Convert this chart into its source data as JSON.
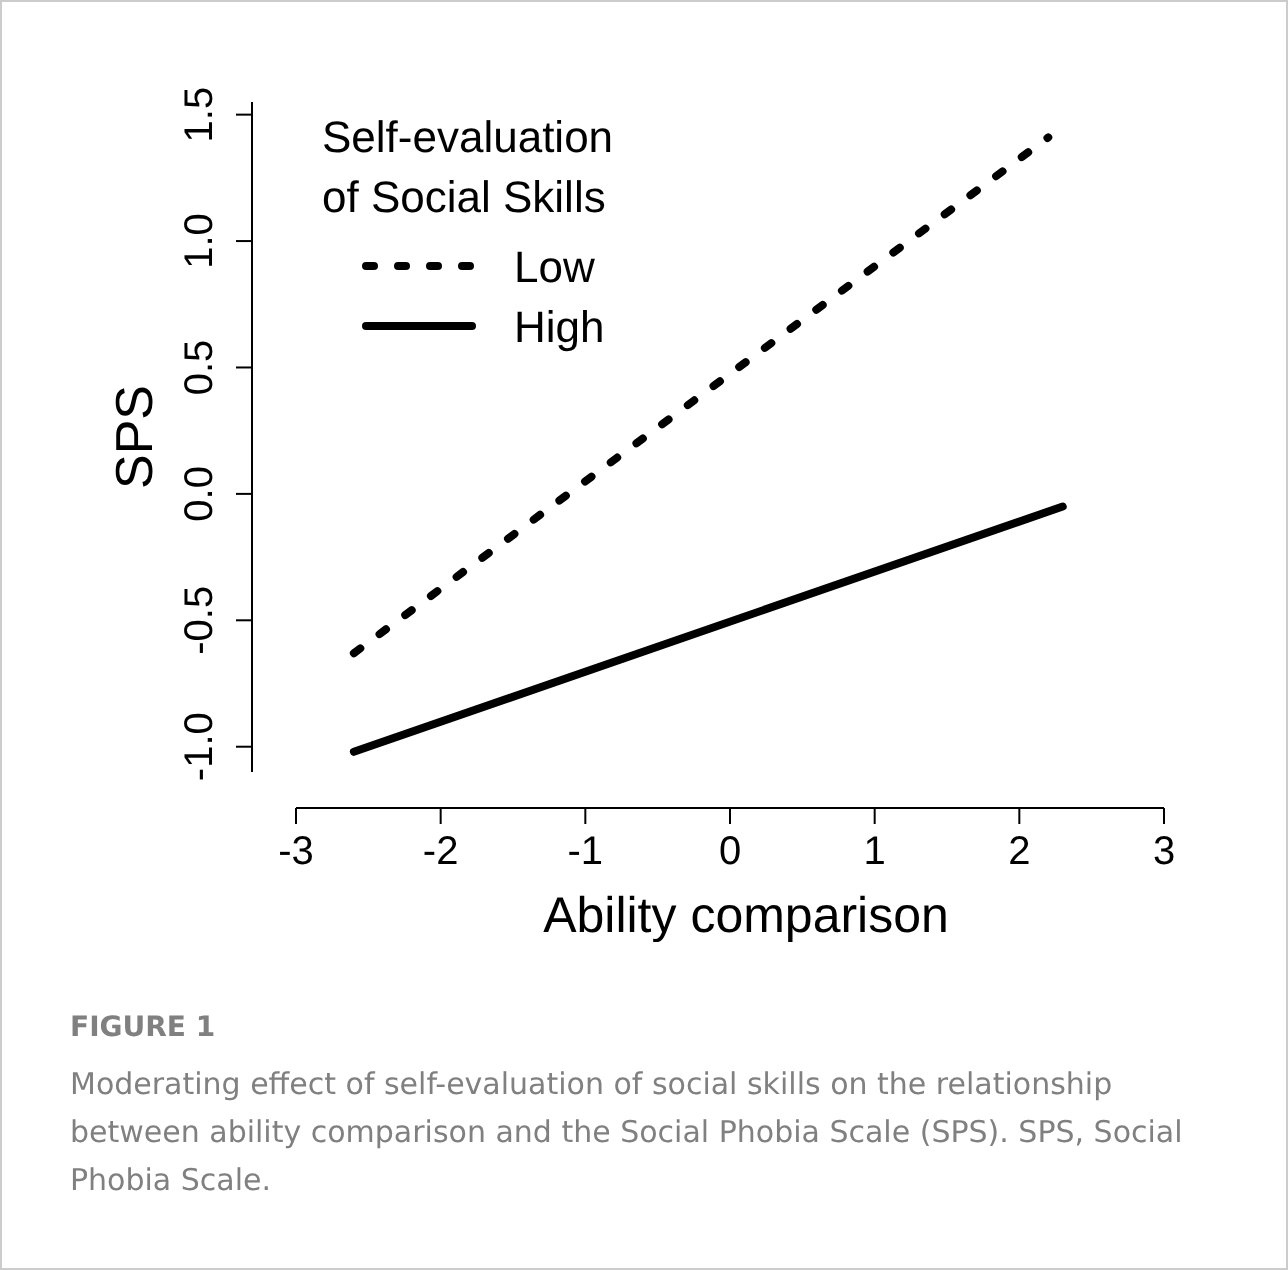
{
  "chart_data": {
    "type": "line",
    "xlabel": "Ability comparison",
    "ylabel": "SPS",
    "legend_title": "Self-evaluation\nof Social Skills",
    "legend": "top left",
    "grid": false,
    "xlim": [
      -3,
      3
    ],
    "xticks": [
      -3,
      -2,
      -1,
      0,
      1,
      2,
      3
    ],
    "ylim": [
      -1.1,
      1.55
    ],
    "yticks": [
      {
        "value": -1,
        "label": "-1.0"
      },
      {
        "value": -0.5,
        "label": "-0.5"
      },
      {
        "value": 0,
        "label": "0.0"
      },
      {
        "value": 0.5,
        "label": "0.5"
      },
      {
        "value": 1,
        "label": "1.0"
      },
      {
        "value": 1.5,
        "label": "1.5"
      }
    ],
    "series": [
      {
        "name": "Low",
        "color": "#000000",
        "line_style": "dotted",
        "x": [
          -2.6,
          2.2
        ],
        "values": [
          -0.63,
          1.41
        ]
      },
      {
        "name": "High",
        "color": "#000000",
        "line_style": "solid",
        "x": [
          -2.6,
          2.3
        ],
        "values": [
          -1.02,
          -0.05
        ]
      }
    ],
    "annotations": [
      "FIGURE 1",
      "Moderating effect of self-evaluation of social skills on the relationship between ability comparison and the Social Phobia Scale (SPS). SPS, Social Phobia Scale."
    ]
  }
}
